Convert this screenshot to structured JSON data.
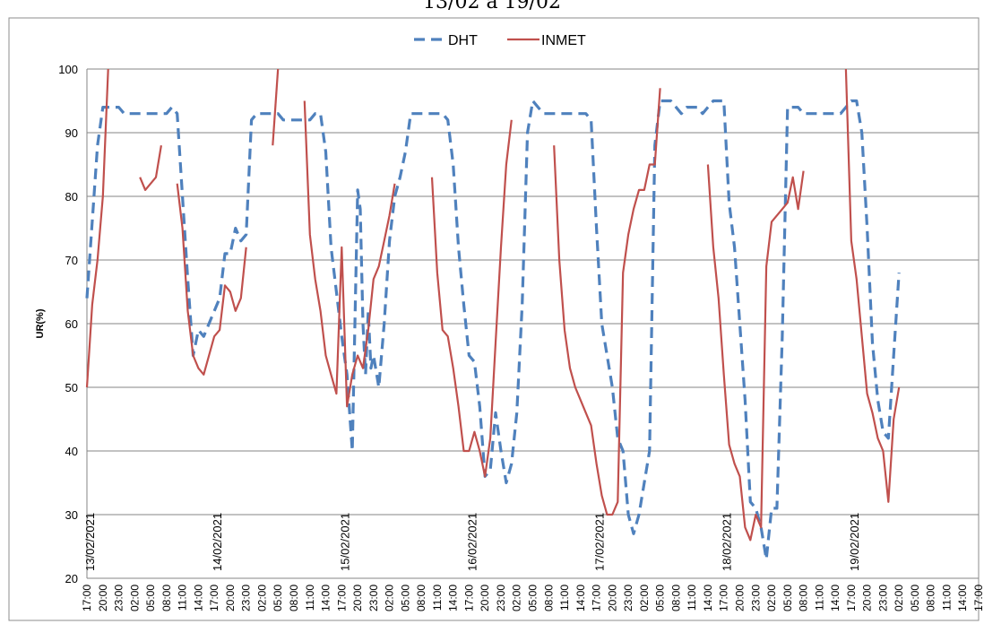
{
  "chart_data": {
    "type": "line",
    "title": "13/02 a 19/02",
    "ylabel": "UR(%)",
    "xlabel": "",
    "ylim": [
      20,
      100
    ],
    "yticks": [
      20,
      30,
      40,
      50,
      60,
      70,
      80,
      90,
      100
    ],
    "grid": "horizontal",
    "legend_position": "top",
    "x_ticks": [
      "17:00",
      "20:00",
      "23:00",
      "02:00",
      "05:00",
      "08:00",
      "11:00",
      "14:00",
      "17:00",
      "20:00",
      "23:00",
      "02:00",
      "05:00",
      "08:00",
      "11:00",
      "14:00",
      "17:00",
      "20:00",
      "23:00",
      "02:00",
      "05:00",
      "08:00",
      "11:00",
      "14:00",
      "17:00",
      "20:00",
      "23:00",
      "02:00",
      "05:00",
      "08:00",
      "11:00",
      "14:00",
      "17:00",
      "20:00",
      "23:00",
      "02:00",
      "05:00",
      "08:00",
      "11:00",
      "14:00",
      "17:00",
      "20:00",
      "23:00",
      "02:00",
      "05:00",
      "08:00",
      "11:00",
      "14:00",
      "17:00",
      "20:00",
      "23:00",
      "02:00",
      "05:00",
      "08:00",
      "11:00",
      "14:00",
      "17:00"
    ],
    "date_labels": [
      {
        "label": "13/02/2021",
        "at_hour": 0
      },
      {
        "label": "14/02/2021",
        "at_hour": 24
      },
      {
        "label": "15/02/2021",
        "at_hour": 48
      },
      {
        "label": "16/02/2021",
        "at_hour": 72
      },
      {
        "label": "17/02/2021",
        "at_hour": 96
      },
      {
        "label": "18/02/2021",
        "at_hour": 120
      },
      {
        "label": "19/02/2021",
        "at_hour": 144
      }
    ],
    "series": [
      {
        "name": "DHT",
        "color": "#4f81bd",
        "style": "dashed",
        "points": [
          [
            0,
            64
          ],
          [
            2,
            88
          ],
          [
            3,
            94
          ],
          [
            6,
            94
          ],
          [
            7,
            93
          ],
          [
            15,
            93
          ],
          [
            16,
            94
          ],
          [
            17,
            93
          ],
          [
            18,
            80
          ],
          [
            19,
            67
          ],
          [
            20,
            55
          ],
          [
            21,
            59
          ],
          [
            22,
            58
          ],
          [
            23,
            60
          ],
          [
            25,
            64
          ],
          [
            26,
            71
          ],
          [
            27,
            71
          ],
          [
            28,
            75
          ],
          [
            29,
            73
          ],
          [
            30,
            74
          ],
          [
            31,
            92
          ],
          [
            32,
            93
          ],
          [
            36,
            93
          ],
          [
            37,
            92
          ],
          [
            42,
            92
          ],
          [
            43,
            93
          ],
          [
            44,
            93
          ],
          [
            45,
            87
          ],
          [
            46,
            72
          ],
          [
            47,
            65
          ],
          [
            48,
            58
          ],
          [
            49,
            52
          ],
          [
            50,
            40
          ],
          [
            51,
            81
          ],
          [
            51.5,
            78
          ],
          [
            52,
            60
          ],
          [
            52.5,
            52
          ],
          [
            53,
            62
          ],
          [
            53.5,
            53
          ],
          [
            54,
            55
          ],
          [
            55,
            50
          ],
          [
            56,
            60
          ],
          [
            57,
            73
          ],
          [
            58,
            80
          ],
          [
            59,
            83
          ],
          [
            60,
            87
          ],
          [
            61,
            93
          ],
          [
            67,
            93
          ],
          [
            68,
            92
          ],
          [
            69,
            85
          ],
          [
            70,
            72
          ],
          [
            71,
            63
          ],
          [
            72,
            55
          ],
          [
            73,
            54
          ],
          [
            74,
            47
          ],
          [
            75,
            36
          ],
          [
            76,
            37
          ],
          [
            77,
            46
          ],
          [
            78,
            40
          ],
          [
            79,
            35
          ],
          [
            80,
            38
          ],
          [
            81,
            46
          ],
          [
            82,
            63
          ],
          [
            83,
            90
          ],
          [
            84,
            95
          ],
          [
            86,
            93
          ],
          [
            88,
            93
          ],
          [
            94,
            93
          ],
          [
            95,
            92
          ],
          [
            96,
            75
          ],
          [
            97,
            60
          ],
          [
            98,
            55
          ],
          [
            99,
            50
          ],
          [
            100,
            42
          ],
          [
            101,
            40
          ],
          [
            102,
            30
          ],
          [
            103,
            27
          ],
          [
            104,
            30
          ],
          [
            105,
            35
          ],
          [
            106,
            40
          ],
          [
            107,
            88
          ],
          [
            108,
            95
          ],
          [
            110,
            95
          ],
          [
            112,
            93
          ],
          [
            113,
            94
          ],
          [
            115,
            94
          ],
          [
            116,
            93
          ],
          [
            117,
            94
          ],
          [
            118,
            95
          ],
          [
            120,
            95
          ],
          [
            121,
            79
          ],
          [
            122,
            72
          ],
          [
            123,
            60
          ],
          [
            124,
            48
          ],
          [
            125,
            32
          ],
          [
            126,
            31
          ],
          [
            127,
            28
          ],
          [
            128,
            23
          ],
          [
            129,
            31
          ],
          [
            130,
            31
          ],
          [
            131,
            58
          ],
          [
            132,
            94
          ],
          [
            134,
            94
          ],
          [
            135,
            93
          ],
          [
            142,
            93
          ],
          [
            143,
            94
          ],
          [
            144,
            95
          ],
          [
            145,
            95
          ],
          [
            146,
            90
          ],
          [
            147,
            75
          ],
          [
            148,
            57
          ],
          [
            149,
            48
          ],
          [
            150,
            43
          ],
          [
            151,
            42
          ],
          [
            152,
            55
          ],
          [
            153,
            68
          ]
        ]
      },
      {
        "name": "INMET",
        "color": "#c0504d",
        "style": "solid",
        "segments": [
          [
            [
              0,
              50
            ],
            [
              1,
              63
            ],
            [
              2,
              70
            ],
            [
              3,
              80
            ],
            [
              4,
              100
            ]
          ],
          [
            [
              10,
              83
            ],
            [
              11,
              81
            ],
            [
              13,
              83
            ],
            [
              14,
              88
            ]
          ],
          [
            [
              17,
              82
            ],
            [
              18,
              75
            ],
            [
              19,
              62
            ],
            [
              20,
              55
            ],
            [
              21,
              53
            ],
            [
              22,
              52
            ],
            [
              23,
              55
            ],
            [
              24,
              58
            ],
            [
              25,
              59
            ],
            [
              26,
              66
            ],
            [
              27,
              65
            ],
            [
              28,
              62
            ],
            [
              29,
              64
            ],
            [
              30,
              72
            ]
          ],
          [
            [
              35,
              88
            ],
            [
              36,
              100
            ]
          ],
          [
            [
              41,
              95
            ],
            [
              42,
              74
            ],
            [
              43,
              67
            ],
            [
              44,
              62
            ],
            [
              45,
              55
            ],
            [
              46,
              52
            ],
            [
              47,
              49
            ],
            [
              48,
              72
            ],
            [
              49,
              47
            ],
            [
              50,
              52
            ],
            [
              51,
              55
            ],
            [
              52,
              53
            ],
            [
              53,
              59
            ],
            [
              54,
              67
            ],
            [
              55,
              69
            ],
            [
              56,
              73
            ],
            [
              57,
              77
            ],
            [
              58,
              82
            ]
          ],
          [
            [
              65,
              83
            ],
            [
              66,
              68
            ],
            [
              67,
              59
            ],
            [
              68,
              58
            ],
            [
              69,
              53
            ],
            [
              70,
              47
            ],
            [
              71,
              40
            ],
            [
              72,
              40
            ],
            [
              73,
              43
            ],
            [
              74,
              40
            ],
            [
              75,
              36
            ],
            [
              76,
              42
            ],
            [
              77,
              57
            ],
            [
              78,
              72
            ],
            [
              79,
              85
            ],
            [
              80,
              92
            ]
          ],
          [
            [
              88,
              88
            ],
            [
              89,
              70
            ],
            [
              90,
              59
            ],
            [
              91,
              53
            ],
            [
              92,
              50
            ],
            [
              93,
              48
            ],
            [
              94,
              46
            ],
            [
              95,
              44
            ],
            [
              96,
              38
            ],
            [
              97,
              33
            ],
            [
              98,
              30
            ],
            [
              99,
              30
            ],
            [
              100,
              32
            ],
            [
              101,
              68
            ],
            [
              102,
              74
            ],
            [
              103,
              78
            ],
            [
              104,
              81
            ],
            [
              105,
              81
            ],
            [
              106,
              85
            ],
            [
              107,
              85
            ],
            [
              108,
              97
            ]
          ],
          [
            [
              117,
              85
            ],
            [
              118,
              72
            ],
            [
              119,
              64
            ],
            [
              120,
              52
            ],
            [
              121,
              41
            ],
            [
              122,
              38
            ],
            [
              123,
              36
            ],
            [
              124,
              28
            ],
            [
              125,
              26
            ],
            [
              126,
              30
            ],
            [
              127,
              28
            ],
            [
              128,
              69
            ],
            [
              129,
              76
            ],
            [
              131,
              78
            ],
            [
              132,
              79
            ],
            [
              133,
              83
            ],
            [
              134,
              78
            ],
            [
              135,
              84
            ]
          ],
          [
            [
              143,
              100
            ],
            [
              144,
              73
            ],
            [
              145,
              67
            ],
            [
              146,
              58
            ],
            [
              147,
              49
            ],
            [
              148,
              46
            ],
            [
              149,
              42
            ],
            [
              150,
              40
            ],
            [
              151,
              32
            ],
            [
              152,
              45
            ],
            [
              153,
              50
            ]
          ]
        ]
      }
    ]
  }
}
